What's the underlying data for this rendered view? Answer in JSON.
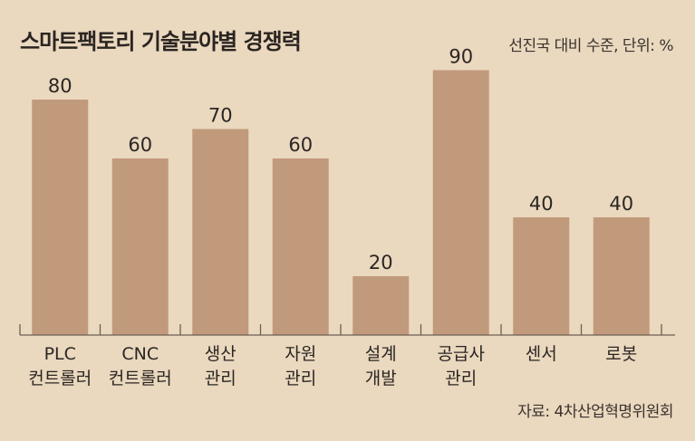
{
  "title": "스마트팩토리 기술분야별 경쟁력",
  "subtitle": "선진국 대비 수준, 단위: %",
  "source": "자료: 4차산업혁명위원회",
  "colors": {
    "background": "#ead8bf",
    "bar": "#c19a7b",
    "axis": "#6e5f53",
    "text": "#2b2622"
  },
  "chart_data": {
    "type": "bar",
    "title": "스마트팩토리 기술분야별 경쟁력",
    "subtitle": "선진국 대비 수준, 단위: %",
    "categories": [
      [
        "PLC",
        "컨트롤러"
      ],
      [
        "CNC",
        "컨트롤러"
      ],
      [
        "생산",
        "관리"
      ],
      [
        "자원",
        "관리"
      ],
      [
        "설계",
        "개발"
      ],
      [
        "공급사",
        "관리"
      ],
      [
        "센서"
      ],
      [
        "로봇"
      ]
    ],
    "values": [
      80,
      60,
      70,
      60,
      20,
      90,
      40,
      40
    ],
    "ylim": [
      0,
      100
    ],
    "grid": false,
    "legend": "none"
  }
}
